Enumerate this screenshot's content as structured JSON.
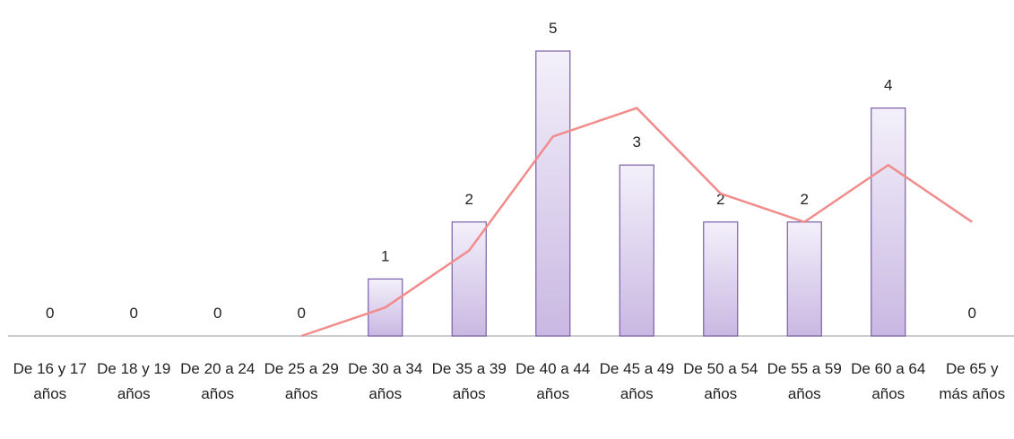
{
  "chart_data": {
    "type": "bar",
    "categories": [
      "De 16 y 17 años",
      "De 18 y 19 años",
      "De 20 a 24 años",
      "De 25 a 29 años",
      "De 30 a 34 años",
      "De 35 a 39 años",
      "De 40 a 44 años",
      "De 45 a 49 años",
      "De 50 a 54 años",
      "De 55 a 59 años",
      "De 60 a 64 años",
      "De 65 y más años"
    ],
    "series": [
      {
        "type": "bar",
        "color": "#c9b8e2",
        "values": [
          0,
          0,
          0,
          0,
          1,
          2,
          5,
          3,
          2,
          2,
          4,
          0
        ]
      },
      {
        "type": "line",
        "color": "#f28b8b",
        "values": [
          null,
          null,
          null,
          0,
          0.5,
          1.5,
          3.5,
          4,
          2.5,
          2,
          3,
          2
        ]
      }
    ]
  }
}
